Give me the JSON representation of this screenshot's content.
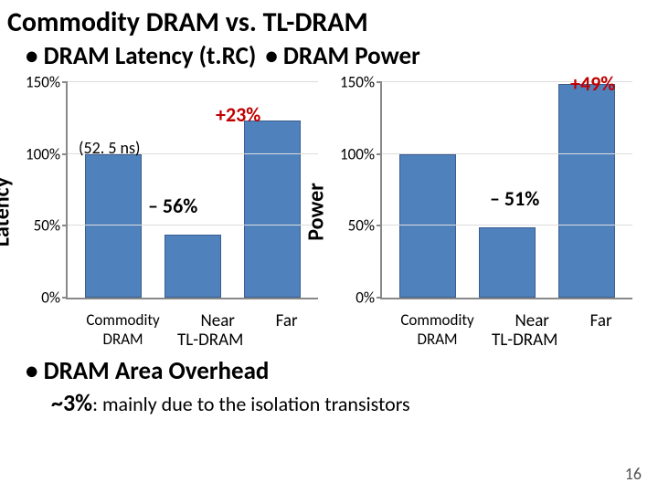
{
  "title": "Commodity DRAM vs. TL-DRAM",
  "bullets": {
    "latency": "DRAM Latency (t.RC)",
    "power": "DRAM Power"
  },
  "chart_common": {
    "type": "bar",
    "ylim": [
      0,
      150
    ],
    "yticks": [
      "0%",
      "50%",
      "100%",
      "150%"
    ],
    "bar_color": "#4f81bd",
    "bar_border": "#3a5e90",
    "grid_color": "#dcdcdc",
    "axis_color": "#888888",
    "bar_width": 0.6,
    "x_categories": [
      "Commodity DRAM",
      "Near",
      "Far"
    ],
    "x_group2_label": "TL-DRAM",
    "label_fontsize": 18,
    "tick_fontsize": 17
  },
  "latency_chart": {
    "y_axis_label": "Latency",
    "values": [
      100,
      44,
      123
    ],
    "note_ref": "(52. 5 ns)",
    "delta_near": "– 56%",
    "delta_far": "+23%",
    "delta_near_color": "#000000",
    "delta_far_color": "#c00000",
    "annot_fontsize": 22
  },
  "power_chart": {
    "y_axis_label": "Power",
    "values": [
      100,
      49,
      149
    ],
    "delta_near": "– 51%",
    "delta_far": "+49%",
    "delta_near_color": "#000000",
    "delta_far_color": "#c00000",
    "annot_fontsize": 22
  },
  "footer": {
    "bullet": "DRAM Area Overhead",
    "detail_strong": "~3%",
    "detail_rest": ": mainly due to the isolation transistors"
  },
  "page_number": "16"
}
